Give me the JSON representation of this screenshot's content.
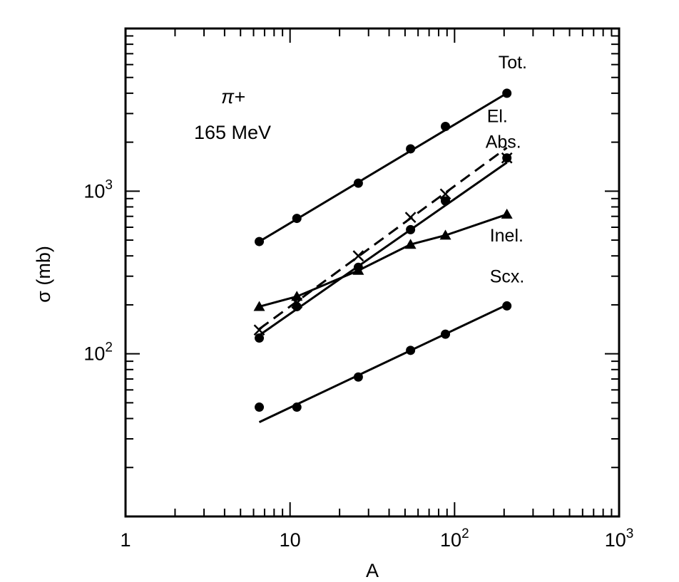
{
  "chart_data": {
    "type": "scatter",
    "xscale": "log",
    "yscale": "log",
    "xlim": [
      1,
      1000
    ],
    "ylim": [
      10,
      10000
    ],
    "xlabel": "A",
    "ylabel": "σ (mb)",
    "grid": false,
    "legend": "none",
    "annotation": {
      "line1": "π+",
      "line2": "165 MeV"
    },
    "x_ticks": [
      {
        "value": 1,
        "mantissa": "1",
        "exp": ""
      },
      {
        "value": 10,
        "mantissa": "10",
        "exp": ""
      },
      {
        "value": 100,
        "mantissa": "10",
        "exp": "2"
      },
      {
        "value": 1000,
        "mantissa": "10",
        "exp": "3"
      }
    ],
    "y_ticks": [
      {
        "value": 100,
        "mantissa": "10",
        "exp": "2"
      },
      {
        "value": 1000,
        "mantissa": "10",
        "exp": "3"
      }
    ],
    "series": [
      {
        "name": "Tot.",
        "marker": "circle",
        "line": "solid",
        "x": [
          6.5,
          11,
          26,
          54,
          88,
          208
        ],
        "y": [
          490,
          680,
          1120,
          1820,
          2500,
          4000
        ],
        "fit": {
          "x": [
            6.5,
            208
          ],
          "y": [
            490,
            4000
          ]
        }
      },
      {
        "name": "El.",
        "marker": "cross",
        "line": "dashed",
        "x": [
          6.5,
          11,
          26,
          54,
          88,
          208
        ],
        "y": [
          140,
          205,
          400,
          690,
          960,
          1600
        ],
        "fit": {
          "x": [
            6.5,
            208
          ],
          "y": [
            142,
            1850
          ]
        }
      },
      {
        "name": "Abs.",
        "marker": "circle",
        "line": "solid",
        "x": [
          6.5,
          11,
          26,
          54,
          88,
          208
        ],
        "y": [
          125,
          195,
          340,
          580,
          870,
          1600
        ],
        "fit": {
          "x": [
            6.5,
            208
          ],
          "y": [
            130,
            1500
          ]
        }
      },
      {
        "name": "Inel.",
        "marker": "triangle",
        "line": "solid",
        "x": [
          6.5,
          11,
          26,
          54,
          88,
          208
        ],
        "y": [
          195,
          225,
          325,
          470,
          535,
          720
        ],
        "fit": {
          "x": [
            6.5,
            208
          ],
          "y": [
            195,
            720
          ]
        }
      },
      {
        "name": "Scx.",
        "marker": "circle",
        "line": "solid",
        "x": [
          6.5,
          11,
          26,
          54,
          88,
          208
        ],
        "y": [
          47,
          47,
          72,
          105,
          132,
          197
        ],
        "fit": {
          "x": [
            6.5,
            208
          ],
          "y": [
            38,
            200
          ]
        }
      }
    ]
  }
}
